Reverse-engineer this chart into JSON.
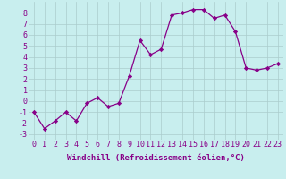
{
  "x": [
    0,
    1,
    2,
    3,
    4,
    5,
    6,
    7,
    8,
    9,
    10,
    11,
    12,
    13,
    14,
    15,
    16,
    17,
    18,
    19,
    20,
    21,
    22,
    23
  ],
  "y": [
    -1,
    -2.5,
    -1.8,
    -1,
    -1.8,
    -0.2,
    0.3,
    -0.5,
    -0.2,
    2.3,
    5.5,
    4.2,
    4.7,
    7.8,
    8.0,
    8.3,
    8.3,
    7.5,
    7.8,
    6.3,
    3.0,
    2.8,
    3.0,
    3.4
  ],
  "line_color": "#880088",
  "marker": "D",
  "markersize": 2.2,
  "linewidth": 0.9,
  "xlabel": "Windchill (Refroidissement éolien,°C)",
  "xlabel_fontsize": 6.5,
  "yticks": [
    -3,
    -2,
    -1,
    0,
    1,
    2,
    3,
    4,
    5,
    6,
    7,
    8
  ],
  "xticks": [
    0,
    1,
    2,
    3,
    4,
    5,
    6,
    7,
    8,
    9,
    10,
    11,
    12,
    13,
    14,
    15,
    16,
    17,
    18,
    19,
    20,
    21,
    22,
    23
  ],
  "ylim": [
    -3.5,
    9.0
  ],
  "xlim": [
    -0.5,
    23.5
  ],
  "bg_color": "#c8eeee",
  "grid_color": "#aacccc",
  "tick_fontsize": 6.0
}
